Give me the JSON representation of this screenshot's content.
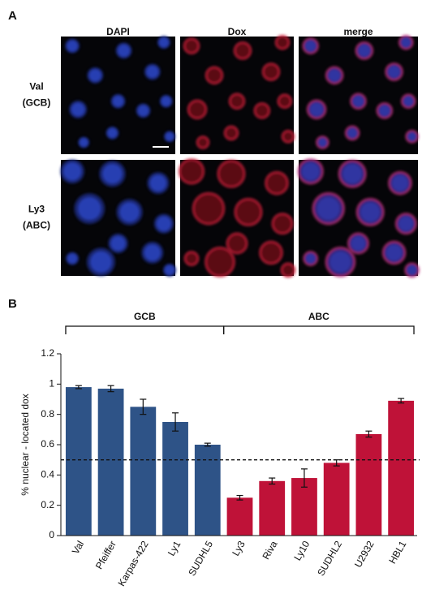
{
  "panel_a": {
    "label": "A",
    "columns": [
      "DAPI",
      "Dox",
      "merge"
    ],
    "column_colors": [
      "#3a56a6",
      "#b0123a",
      "#111111"
    ],
    "rows": [
      [
        "Val",
        "(GCB)"
      ],
      [
        "Ly3",
        "(ABC)"
      ]
    ]
  },
  "chart_data": {
    "type": "bar",
    "panel_label": "B",
    "ylabel": "% nuclear - located dox",
    "categories": [
      "Val",
      "Pfeiffer",
      "Karpas-422",
      "Ly1",
      "SUDHL5",
      "Ly3",
      "Riva",
      "Ly10",
      "SUDHL2",
      "U2932",
      "HBL1"
    ],
    "values": [
      0.98,
      0.97,
      0.85,
      0.75,
      0.6,
      0.25,
      0.36,
      0.38,
      0.48,
      0.67,
      0.89
    ],
    "errors": [
      0.01,
      0.02,
      0.05,
      0.06,
      0.01,
      0.015,
      0.02,
      0.06,
      0.02,
      0.02,
      0.015
    ],
    "colors": [
      "#2e5387",
      "#2e5387",
      "#2e5387",
      "#2e5387",
      "#2e5387",
      "#bf1238",
      "#bf1238",
      "#bf1238",
      "#bf1238",
      "#bf1238",
      "#bf1238"
    ],
    "groups": [
      {
        "label": "GCB",
        "start": 0,
        "end": 4
      },
      {
        "label": "ABC",
        "start": 5,
        "end": 10
      }
    ],
    "threshold": 0.5,
    "ylim": [
      0,
      1.2
    ],
    "yticks": [
      0,
      0.2,
      0.4,
      0.6,
      0.8,
      1,
      1.2
    ]
  }
}
